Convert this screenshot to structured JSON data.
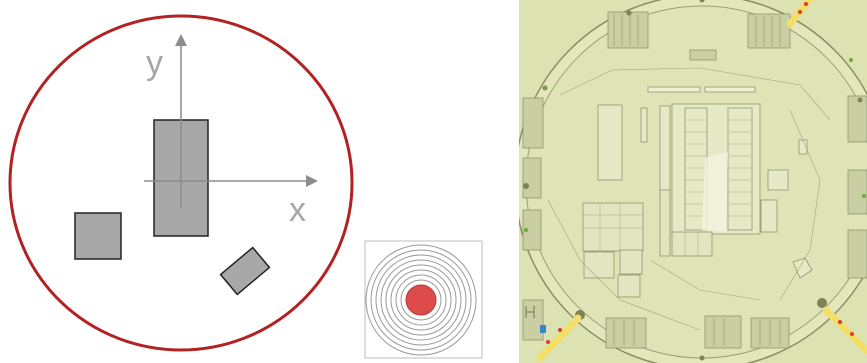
{
  "diagram": {
    "axis_labels": {
      "x": "x",
      "y": "y"
    },
    "colors": {
      "circle_boundary": "#b22222",
      "shape_fill": "#a8a8a8",
      "shape_stroke": "#222222",
      "axis": "#8c8c8c",
      "axis_label": "#a6a6a6",
      "target_fill": "#dd4b4b",
      "target_rings": "#999999",
      "map_background": "#dde2b3",
      "map_buildings": "#c9cfa3"
    },
    "icons": {
      "target": "concentric-rings-target-icon",
      "map": "circular-site-plan-map"
    }
  }
}
